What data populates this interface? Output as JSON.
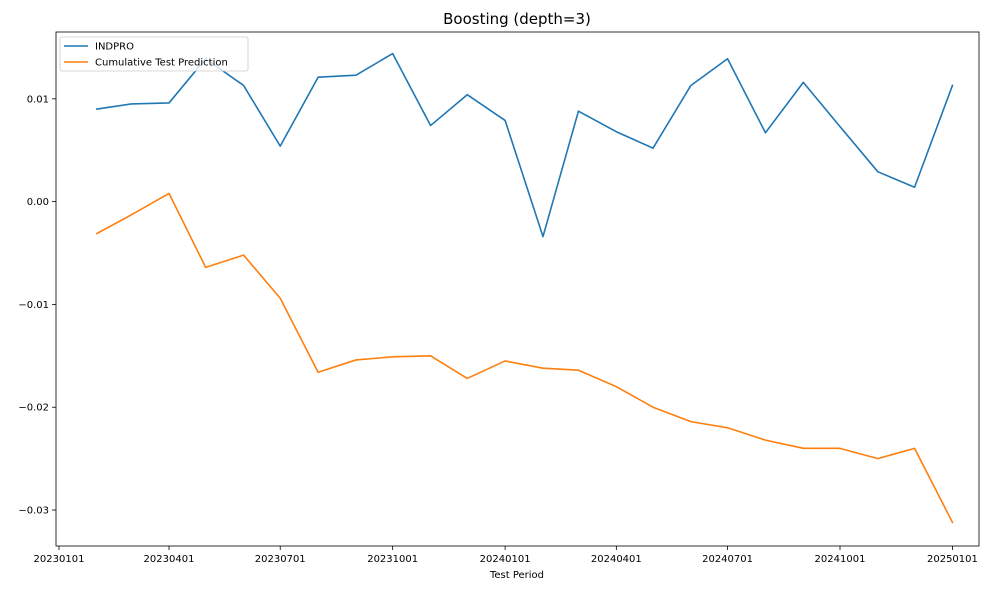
{
  "chart_data": {
    "type": "line",
    "title": "Boosting (depth=3)",
    "xlabel": "Test Period",
    "ylabel": "",
    "x_ticks": [
      "20230101",
      "20230401",
      "20230701",
      "20231001",
      "20240101",
      "20240401",
      "20240701",
      "20241001",
      "20250101"
    ],
    "y_ticks": [
      "0.01",
      "0.00",
      "−0.01",
      "−0.02",
      "−0.03"
    ],
    "ylim": [
      -0.0335,
      0.0165
    ],
    "grid": false,
    "legend_position": "top-left",
    "x": [
      "2023-02-01",
      "2023-03-01",
      "2023-04-01",
      "2023-05-01",
      "2023-06-01",
      "2023-07-01",
      "2023-08-01",
      "2023-09-01",
      "2023-10-01",
      "2023-11-01",
      "2023-12-01",
      "2024-01-01",
      "2024-02-01",
      "2024-03-01",
      "2024-04-01",
      "2024-05-01",
      "2024-06-01",
      "2024-07-01",
      "2024-08-01",
      "2024-09-01",
      "2024-10-01",
      "2024-11-01",
      "2024-12-01",
      "2025-01-01"
    ],
    "series": [
      {
        "name": "INDPRO",
        "color": "#1f77b4",
        "values": [
          0.009,
          0.0095,
          0.0096,
          0.0139,
          0.0113,
          0.0054,
          0.0121,
          0.0123,
          0.0144,
          0.0074,
          0.0104,
          0.0079,
          -0.0034,
          0.0088,
          0.0068,
          0.0052,
          0.0113,
          0.0139,
          0.0067,
          0.0116,
          0.0073,
          0.0029,
          0.0014,
          0.0113
        ]
      },
      {
        "name": "Cumulative Test Prediction",
        "color": "#ff7f0e",
        "values": [
          -0.0031,
          -0.0013,
          0.0008,
          -0.0064,
          -0.0052,
          -0.0094,
          -0.0166,
          -0.0154,
          -0.0151,
          -0.015,
          -0.0172,
          -0.0155,
          -0.0162,
          -0.0164,
          -0.018,
          -0.02,
          -0.0214,
          -0.022,
          -0.0232,
          -0.024,
          -0.024,
          -0.025,
          -0.024,
          -0.0312
        ]
      }
    ]
  }
}
